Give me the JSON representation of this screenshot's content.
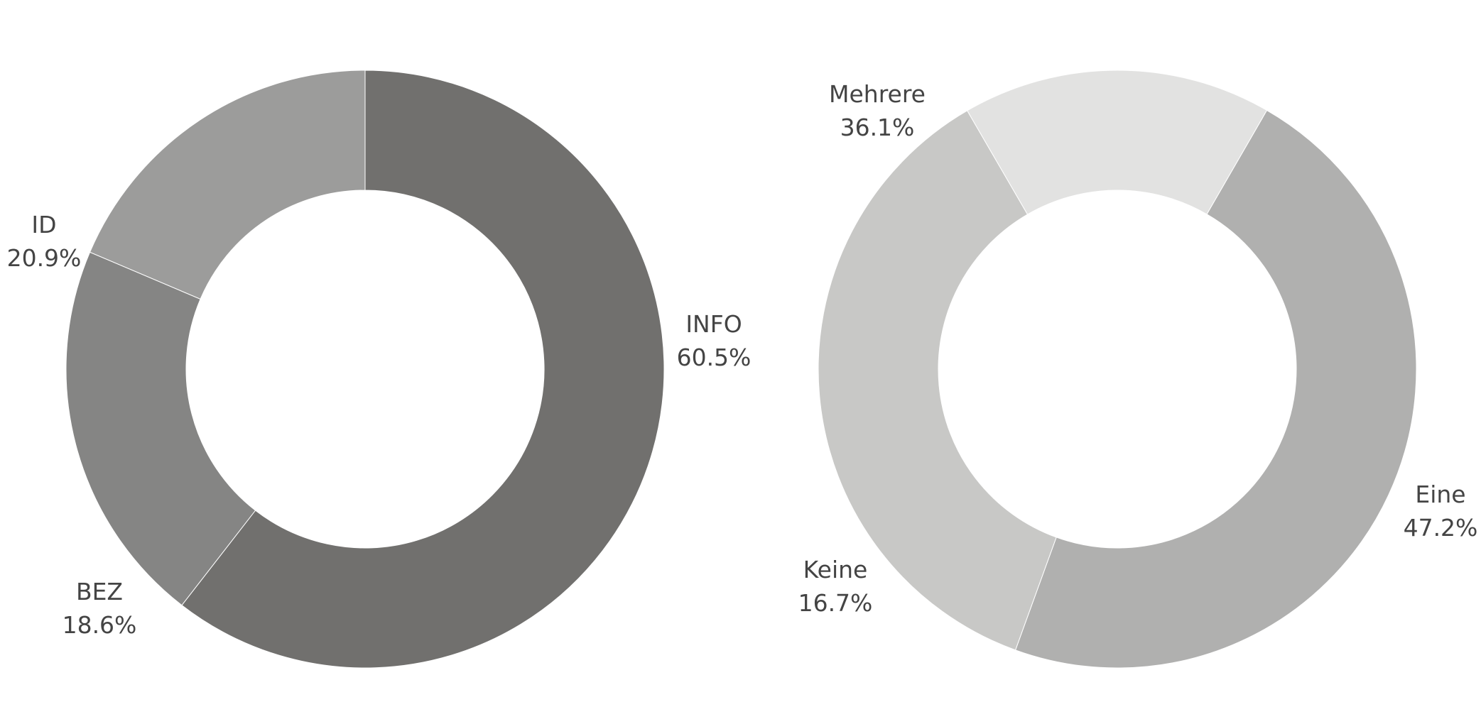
{
  "chart_data": [
    {
      "type": "pie",
      "hole": true,
      "categories": [
        "INFO",
        "ID",
        "BEZ"
      ],
      "values": [
        60.5,
        20.9,
        18.6
      ],
      "value_labels": [
        "60.5%",
        "20.9%",
        "18.6%"
      ],
      "colors": [
        "#71706e",
        "#858584",
        "#9c9c9b"
      ],
      "title": ""
    },
    {
      "type": "pie",
      "hole": true,
      "categories": [
        "Eine",
        "Mehrere",
        "Keine"
      ],
      "values": [
        47.2,
        36.1,
        16.7
      ],
      "value_labels": [
        "47.2%",
        "36.1%",
        "16.7%"
      ],
      "colors": [
        "#b0b0af",
        "#c8c8c6",
        "#e2e2e1"
      ],
      "title": ""
    }
  ]
}
